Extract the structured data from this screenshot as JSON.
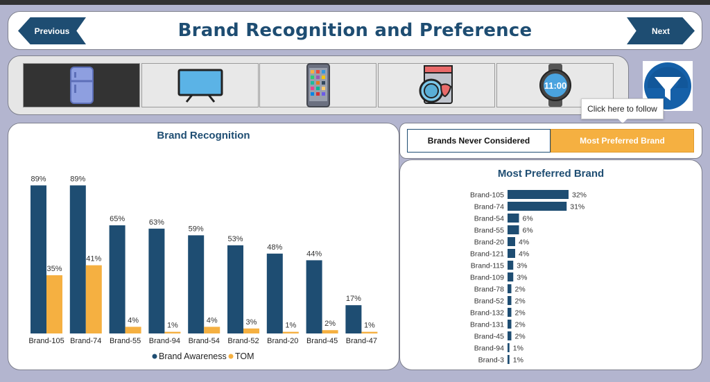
{
  "header": {
    "title": "Brand Recognition and Preference",
    "previous_label": "Previous",
    "next_label": "Next"
  },
  "categories": [
    {
      "icon": "refrigerator-icon",
      "selected": true
    },
    {
      "icon": "tv-icon",
      "selected": false
    },
    {
      "icon": "smartphone-icon",
      "selected": false
    },
    {
      "icon": "washing-machine-icon",
      "selected": false
    },
    {
      "icon": "smartwatch-icon",
      "selected": false,
      "clock_text": "11:00"
    }
  ],
  "filter": {
    "tooltip": "Click here to follow"
  },
  "toggles": {
    "option1": "Brands Never Considered",
    "option2": "Most Preferred Brand",
    "active": "option2"
  },
  "chart_data": [
    {
      "type": "bar",
      "title": "Brand Recognition",
      "categories": [
        "Brand-105",
        "Brand-74",
        "Brand-55",
        "Brand-94",
        "Brand-54",
        "Brand-52",
        "Brand-20",
        "Brand-45",
        "Brand-47"
      ],
      "series": [
        {
          "name": "Brand Awareness",
          "color": "#1e4d72",
          "values": [
            89,
            89,
            65,
            63,
            59,
            53,
            48,
            44,
            17
          ]
        },
        {
          "name": "TOM",
          "color": "#f5b041",
          "values": [
            35,
            41,
            4,
            1,
            4,
            3,
            1,
            2,
            1
          ]
        }
      ],
      "value_suffix": "%",
      "ylim": [
        0,
        100
      ],
      "legend": "bottom-center",
      "grid": false
    },
    {
      "type": "bar",
      "orientation": "horizontal",
      "title": "Most Preferred Brand",
      "categories": [
        "Brand-105",
        "Brand-74",
        "Brand-54",
        "Brand-55",
        "Brand-20",
        "Brand-121",
        "Brand-115",
        "Brand-109",
        "Brand-78",
        "Brand-52",
        "Brand-132",
        "Brand-131",
        "Brand-45",
        "Brand-94",
        "Brand-3"
      ],
      "values": [
        32,
        31,
        6,
        6,
        4,
        4,
        3,
        3,
        2,
        2,
        2,
        2,
        2,
        1,
        1
      ],
      "color": "#1e4d72",
      "value_suffix": "%",
      "xlim": [
        0,
        32
      ],
      "grid": false
    }
  ]
}
